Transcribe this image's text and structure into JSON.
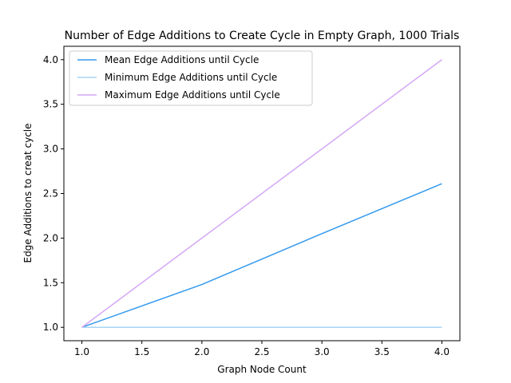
{
  "chart_data": {
    "type": "line",
    "title": "Number of Edge Additions to Create Cycle in Empty Graph, 1000 Trials",
    "xlabel": "Graph Node Count",
    "ylabel": "Edge Additions to creat cycle",
    "xlim": [
      0.85,
      4.15
    ],
    "ylim": [
      0.85,
      4.15
    ],
    "xticks": [
      "1.0",
      "1.5",
      "2.0",
      "2.5",
      "3.0",
      "3.5",
      "4.0"
    ],
    "yticks": [
      "1.0",
      "1.5",
      "2.0",
      "2.5",
      "3.0",
      "3.5",
      "4.0"
    ],
    "x": [
      1,
      2,
      3,
      4
    ],
    "series": [
      {
        "name": "Mean Edge Additions until Cycle",
        "color": "#3399ee",
        "values": [
          1.0,
          1.48,
          2.05,
          2.61
        ]
      },
      {
        "name": "Minimum Edge Additions until Cycle",
        "color": "#a9d4f5",
        "values": [
          1.0,
          1.0,
          1.0,
          1.0
        ]
      },
      {
        "name": "Maximum Edge Additions until Cycle",
        "color": "#d4a8f5",
        "values": [
          1.0,
          2.0,
          3.0,
          4.0
        ]
      }
    ],
    "legend": "top-left",
    "grid": false
  }
}
